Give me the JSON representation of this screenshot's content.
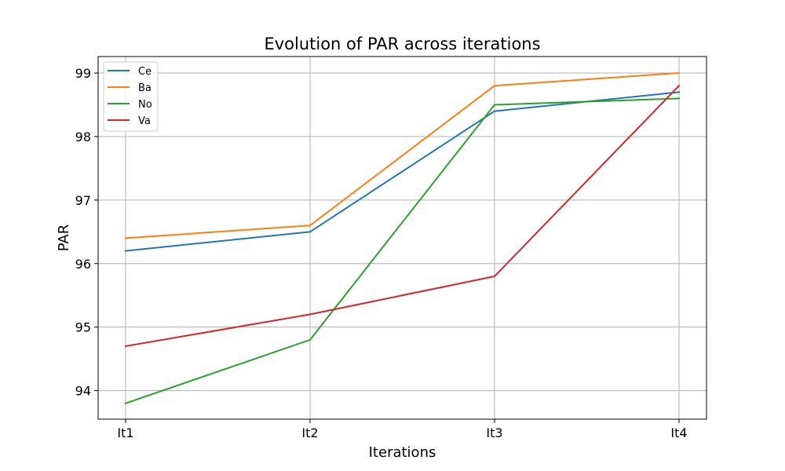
{
  "chart_data": {
    "type": "line",
    "title": "Evolution of PAR across iterations",
    "xlabel": "Iterations",
    "ylabel": "PAR",
    "categories": [
      "It1",
      "It2",
      "It3",
      "It4"
    ],
    "ylim": [
      93.55,
      99.26
    ],
    "yticks": [
      94,
      95,
      96,
      97,
      98,
      99
    ],
    "grid": true,
    "legend_position": "top-left",
    "series": [
      {
        "name": "Ce",
        "color": "#1f77b4",
        "values": [
          96.2,
          96.5,
          98.4,
          98.7
        ]
      },
      {
        "name": "Ba",
        "color": "#ff7f0e",
        "values": [
          96.4,
          96.6,
          98.8,
          99.0
        ]
      },
      {
        "name": "No",
        "color": "#2ca02c",
        "values": [
          93.8,
          94.8,
          98.5,
          98.6
        ]
      },
      {
        "name": "Va",
        "color": "#d62728",
        "values": [
          94.7,
          95.2,
          95.8,
          98.8
        ]
      }
    ]
  }
}
